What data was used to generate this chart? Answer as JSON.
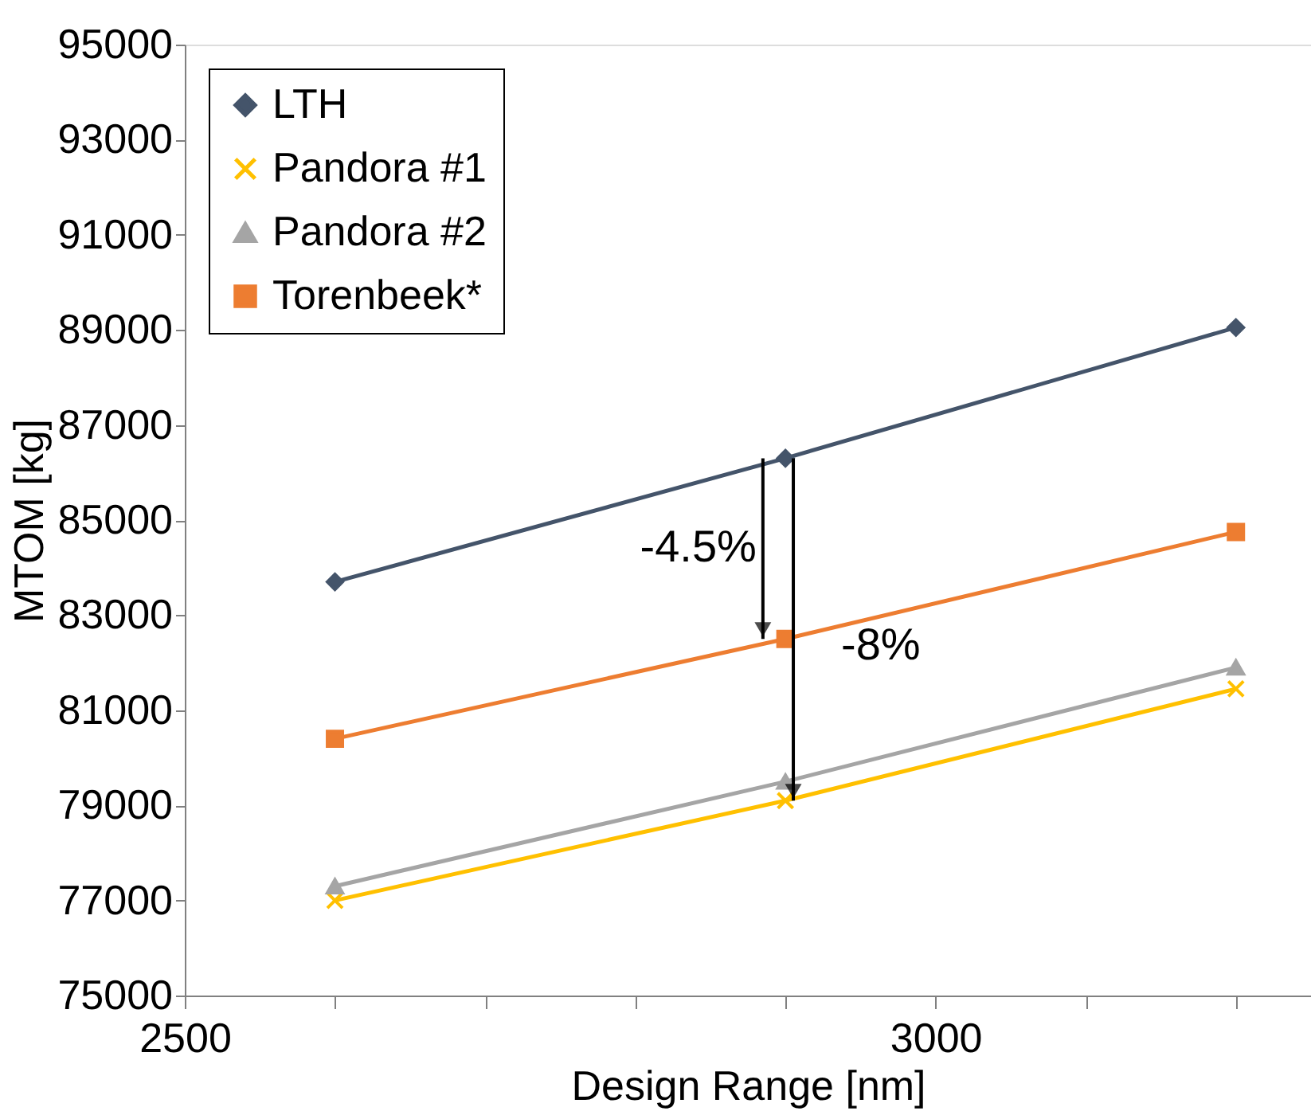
{
  "chart_data": {
    "type": "line",
    "xlabel": "Design Range [nm]",
    "ylabel": "MTOM [kg]",
    "x": [
      2600,
      2900,
      3200
    ],
    "series": [
      {
        "name": "LTH",
        "color": "#44546a",
        "marker": "diamond",
        "values": [
          83700,
          86300,
          89050
        ]
      },
      {
        "name": "Pandora #1",
        "color": "#ffc000",
        "marker": "cross",
        "values": [
          77000,
          79100,
          81450
        ]
      },
      {
        "name": "Pandora #2",
        "color": "#a5a5a5",
        "marker": "triangle",
        "values": [
          77300,
          79500,
          81900
        ]
      },
      {
        "name": "Torenbeek*",
        "color": "#ed7d31",
        "marker": "square",
        "values": [
          80400,
          82500,
          84750
        ]
      }
    ],
    "xlim": [
      2500,
      3250
    ],
    "xticks": [
      2500,
      {
        "value": 2600,
        "label": null
      },
      {
        "value": 2700,
        "label": null
      },
      {
        "value": 2800,
        "label": null
      },
      {
        "value": 2900,
        "label": null
      },
      3000,
      {
        "value": 3100,
        "label": null
      },
      {
        "value": 3200,
        "label": null
      }
    ],
    "ylim": [
      75000,
      95000
    ],
    "yticks": [
      75000,
      77000,
      79000,
      81000,
      83000,
      85000,
      87000,
      89000,
      91000,
      93000,
      95000
    ],
    "annotations": [
      "-4.5%",
      "-8%"
    ],
    "grid": false,
    "legend": "top left"
  }
}
